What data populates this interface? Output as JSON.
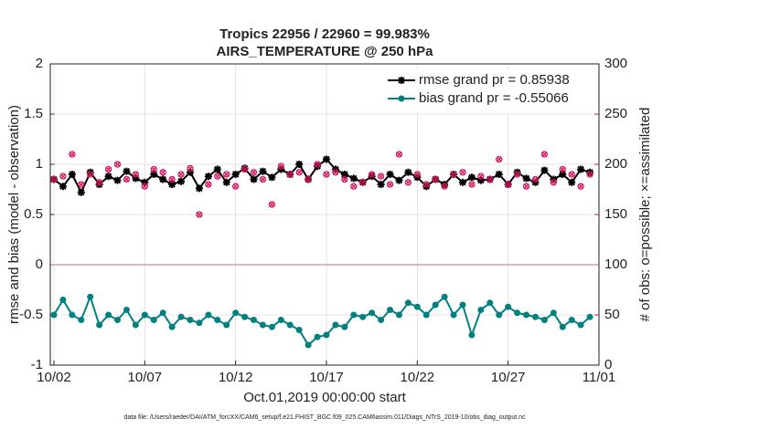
{
  "chart_data": {
    "type": "line",
    "title": "Tropics 22956 / 22960 = 99.983%",
    "subtitle": "AIRS_TEMPERATURE @ 250 hPa",
    "x_label": "Oct.01,2019 00:00:00 start",
    "y_label": "rmse and bias (model - observation)",
    "y2_label": "# of obs: o=possible; ×=assimilated",
    "footnote": "data file: /Users/raeder/DAI/ATM_forcXX/CAM6_setup/f.e21.FHIST_BGC.f09_025.CAM6assim.011/Diags_NTrS_2019-10/obs_diag_output.nc",
    "legend": "upper right",
    "grid": true,
    "xlim": [
      0.8,
      31
    ],
    "xticks": [
      {
        "value": 1,
        "label": "10/02"
      },
      {
        "value": 6,
        "label": "10/07"
      },
      {
        "value": 11,
        "label": "10/12"
      },
      {
        "value": 16,
        "label": "10/17"
      },
      {
        "value": 21,
        "label": "10/22"
      },
      {
        "value": 26,
        "label": "10/27"
      },
      {
        "value": 31,
        "label": "11/01"
      }
    ],
    "ylim": [
      -1,
      2
    ],
    "yticks": [
      -1,
      -0.5,
      0,
      0.5,
      1,
      1.5,
      2
    ],
    "y2lim": [
      0,
      300
    ],
    "y2ticks": [
      0,
      50,
      100,
      150,
      200,
      250,
      300
    ],
    "y2color": "#d6145f",
    "x": [
      1,
      1.5,
      2,
      2.5,
      3,
      3.5,
      4,
      4.5,
      5,
      5.5,
      6,
      6.5,
      7,
      7.5,
      8,
      8.5,
      9,
      9.5,
      10,
      10.5,
      11,
      11.5,
      12,
      12.5,
      13,
      13.5,
      14,
      14.5,
      15,
      15.5,
      16,
      16.5,
      17,
      17.5,
      18,
      18.5,
      19,
      19.5,
      20,
      20.5,
      21,
      21.5,
      22,
      22.5,
      23,
      23.5,
      24,
      24.5,
      25,
      25.5,
      26,
      26.5,
      27,
      27.5,
      28,
      28.5,
      29,
      29.5,
      30,
      30.5
    ],
    "series": [
      {
        "name": "rmse grand pr = 0.85938",
        "color": "#000000",
        "marker": "star",
        "values": [
          0.85,
          0.78,
          0.9,
          0.72,
          0.92,
          0.8,
          0.88,
          0.84,
          0.93,
          0.86,
          0.82,
          0.9,
          0.85,
          0.8,
          0.83,
          0.92,
          0.76,
          0.88,
          0.95,
          0.82,
          0.9,
          0.96,
          0.85,
          0.93,
          0.87,
          0.95,
          0.9,
          1.0,
          0.85,
          0.98,
          1.05,
          0.95,
          0.9,
          0.86,
          0.82,
          0.88,
          0.8,
          0.9,
          0.84,
          0.92,
          0.87,
          0.78,
          0.85,
          0.8,
          0.9,
          0.82,
          0.87,
          0.84,
          0.85,
          0.9,
          0.8,
          0.92,
          0.86,
          0.82,
          0.94,
          0.85,
          0.9,
          0.82,
          0.95,
          0.92
        ]
      },
      {
        "name": "bias grand pr = -0.55066",
        "color": "#00807f",
        "marker": "circle",
        "values": [
          -0.5,
          -0.35,
          -0.5,
          -0.55,
          -0.32,
          -0.6,
          -0.5,
          -0.55,
          -0.45,
          -0.6,
          -0.5,
          -0.55,
          -0.48,
          -0.62,
          -0.52,
          -0.55,
          -0.58,
          -0.5,
          -0.55,
          -0.6,
          -0.48,
          -0.52,
          -0.55,
          -0.6,
          -0.62,
          -0.55,
          -0.6,
          -0.65,
          -0.8,
          -0.72,
          -0.7,
          -0.6,
          -0.62,
          -0.5,
          -0.52,
          -0.48,
          -0.55,
          -0.45,
          -0.5,
          -0.38,
          -0.42,
          -0.5,
          -0.4,
          -0.32,
          -0.5,
          -0.4,
          -0.7,
          -0.45,
          -0.38,
          -0.5,
          -0.42,
          -0.48,
          -0.5,
          -0.52,
          -0.55,
          -0.48,
          -0.62,
          -0.55,
          -0.6,
          -0.52
        ]
      },
      {
        "color": "#d6145f",
        "marker": "obs",
        "axis": "y2",
        "values": [
          185,
          188,
          210,
          180,
          190,
          182,
          195,
          200,
          185,
          190,
          178,
          195,
          192,
          185,
          190,
          196,
          150,
          180,
          188,
          190,
          178,
          195,
          192,
          185,
          160,
          198,
          190,
          192,
          185,
          200,
          190,
          192,
          185,
          178,
          182,
          190,
          188,
          180,
          210,
          182,
          190,
          180,
          185,
          178,
          190,
          192,
          180,
          188,
          185,
          205,
          180,
          190,
          178,
          185,
          210,
          182,
          195,
          190,
          178,
          190
        ]
      }
    ]
  }
}
